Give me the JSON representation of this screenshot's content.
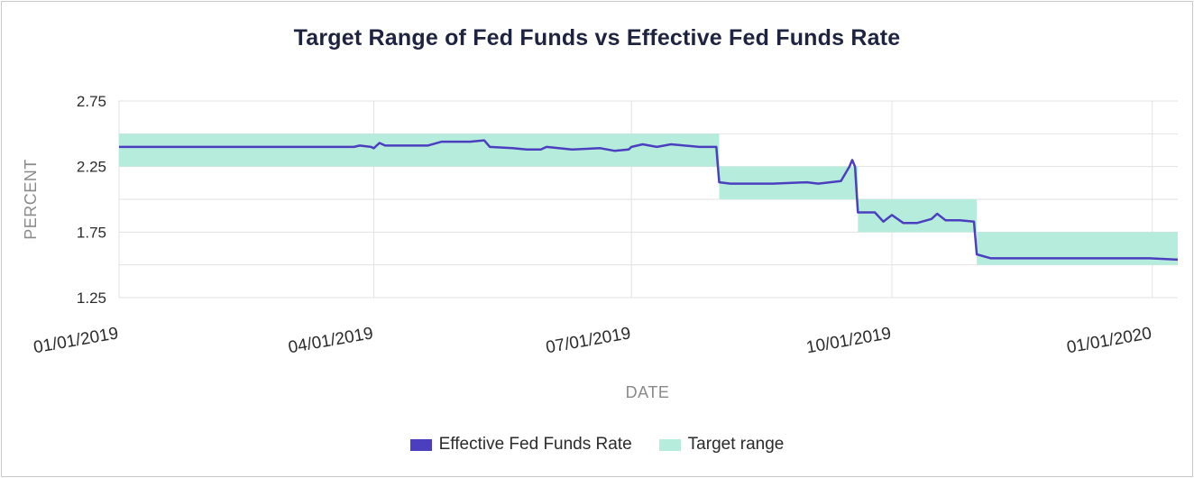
{
  "chart_data": {
    "type": "line",
    "title": "Target Range of Fed Funds vs Effective Fed Funds Rate",
    "xlabel": "DATE",
    "ylabel": "PERCENT",
    "ylim": [
      1.25,
      2.75
    ],
    "y_ticks": [
      "2.75",
      "2.25",
      "1.75",
      "1.25"
    ],
    "x_ticks": [
      "01/01/2019",
      "04/01/2019",
      "07/01/2019",
      "10/01/2019",
      "01/01/2020"
    ],
    "x_range": [
      "2019-01-01",
      "2020-01-10"
    ],
    "grid": true,
    "legend_position": "bottom",
    "colors": {
      "line": "#4b3fc0",
      "band": "#b6ecdc"
    },
    "series": [
      {
        "name": "Effective Fed Funds Rate",
        "type": "line",
        "points": [
          [
            "2019-01-01",
            2.4
          ],
          [
            "2019-03-25",
            2.4
          ],
          [
            "2019-03-27",
            2.41
          ],
          [
            "2019-03-31",
            2.4
          ],
          [
            "2019-04-01",
            2.39
          ],
          [
            "2019-04-03",
            2.43
          ],
          [
            "2019-04-05",
            2.41
          ],
          [
            "2019-04-15",
            2.41
          ],
          [
            "2019-04-20",
            2.41
          ],
          [
            "2019-04-25",
            2.44
          ],
          [
            "2019-04-30",
            2.44
          ],
          [
            "2019-05-05",
            2.44
          ],
          [
            "2019-05-10",
            2.45
          ],
          [
            "2019-05-12",
            2.4
          ],
          [
            "2019-05-20",
            2.39
          ],
          [
            "2019-05-25",
            2.38
          ],
          [
            "2019-05-30",
            2.38
          ],
          [
            "2019-06-01",
            2.4
          ],
          [
            "2019-06-10",
            2.38
          ],
          [
            "2019-06-20",
            2.39
          ],
          [
            "2019-06-25",
            2.37
          ],
          [
            "2019-06-30",
            2.38
          ],
          [
            "2019-07-01",
            2.4
          ],
          [
            "2019-07-05",
            2.42
          ],
          [
            "2019-07-10",
            2.4
          ],
          [
            "2019-07-15",
            2.42
          ],
          [
            "2019-07-25",
            2.4
          ],
          [
            "2019-07-30",
            2.4
          ],
          [
            "2019-07-31",
            2.4
          ],
          [
            "2019-08-01",
            2.13
          ],
          [
            "2019-08-05",
            2.12
          ],
          [
            "2019-08-15",
            2.12
          ],
          [
            "2019-08-20",
            2.12
          ],
          [
            "2019-09-01",
            2.13
          ],
          [
            "2019-09-05",
            2.12
          ],
          [
            "2019-09-13",
            2.14
          ],
          [
            "2019-09-16",
            2.25
          ],
          [
            "2019-09-17",
            2.3
          ],
          [
            "2019-09-18",
            2.25
          ],
          [
            "2019-09-19",
            1.9
          ],
          [
            "2019-09-25",
            1.9
          ],
          [
            "2019-09-28",
            1.83
          ],
          [
            "2019-10-01",
            1.88
          ],
          [
            "2019-10-05",
            1.82
          ],
          [
            "2019-10-10",
            1.82
          ],
          [
            "2019-10-15",
            1.85
          ],
          [
            "2019-10-17",
            1.89
          ],
          [
            "2019-10-20",
            1.84
          ],
          [
            "2019-10-25",
            1.84
          ],
          [
            "2019-10-30",
            1.83
          ],
          [
            "2019-10-31",
            1.58
          ],
          [
            "2019-11-05",
            1.55
          ],
          [
            "2019-11-15",
            1.55
          ],
          [
            "2019-11-25",
            1.55
          ],
          [
            "2019-12-05",
            1.55
          ],
          [
            "2019-12-10",
            1.55
          ],
          [
            "2019-12-20",
            1.55
          ],
          [
            "2019-12-31",
            1.55
          ],
          [
            "2020-01-10",
            1.54
          ]
        ]
      },
      {
        "name": "Target range",
        "type": "band",
        "ranges": [
          {
            "from": "2019-01-01",
            "to": "2019-08-01",
            "low": 2.25,
            "high": 2.5
          },
          {
            "from": "2019-08-01",
            "to": "2019-09-19",
            "low": 2.0,
            "high": 2.25
          },
          {
            "from": "2019-09-19",
            "to": "2019-10-31",
            "low": 1.75,
            "high": 2.0
          },
          {
            "from": "2019-10-31",
            "to": "2020-01-10",
            "low": 1.5,
            "high": 1.75
          }
        ]
      }
    ]
  }
}
